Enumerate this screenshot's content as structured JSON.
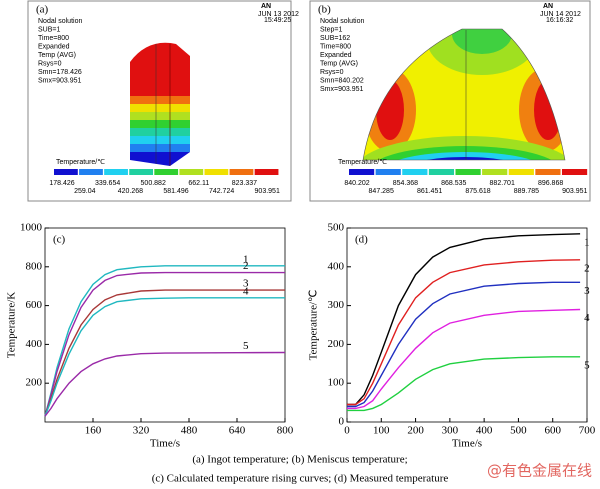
{
  "panels": [
    {
      "label": "(a)",
      "logo": "AN",
      "date": "JUN 13 2012",
      "time": "15:49:25",
      "info": [
        "Nodal solution",
        "SUB=1",
        "Time=800",
        "Expanded",
        "Temp (AVG)",
        "Rsys=0",
        "Smn=178.426",
        "Smx=903.951"
      ],
      "legend_title": "Temperature/℃",
      "legend_top": [
        178.426,
        339.654,
        500.882,
        662.11,
        823.337
      ],
      "legend_bottom": [
        259.04,
        420.268,
        581.496,
        742.724,
        903.951
      ]
    },
    {
      "label": "(b)",
      "logo": "AN",
      "date": "JUN 14 2012",
      "time": "16:16:32",
      "info": [
        "Nodal solution",
        "Step=1",
        "SUB=162",
        "Time=800",
        "Expanded",
        "Temp (AVG)",
        "Rsys=0",
        "Smn=840.202",
        "Smx=903.951"
      ],
      "legend_title": "Temperature/℃",
      "legend_top": [
        840.202,
        854.368,
        868.535,
        882.701,
        896.868
      ],
      "legend_bottom": [
        847.285,
        861.451,
        875.618,
        889.785,
        903.951
      ]
    }
  ],
  "chart_data": [
    {
      "type": "line",
      "panel_label": "(c)",
      "x_label": "Time/s",
      "y_label": "Temperature/K",
      "x": [
        0,
        20,
        40,
        80,
        120,
        160,
        200,
        240,
        320,
        400,
        480,
        640,
        800
      ],
      "xlim": [
        0,
        800
      ],
      "xticks": [
        160,
        320,
        480,
        640,
        800
      ],
      "ylim": [
        0,
        1000
      ],
      "yticks": [
        200,
        400,
        600,
        800,
        1000
      ],
      "series": [
        {
          "name": "1",
          "color": "#20b8c0",
          "values": [
            30,
            150,
            280,
            480,
            620,
            710,
            760,
            785,
            800,
            805,
            805,
            805,
            805
          ]
        },
        {
          "name": "2",
          "color": "#9a2aa8",
          "values": [
            30,
            140,
            260,
            450,
            590,
            680,
            730,
            755,
            768,
            770,
            770,
            770,
            770
          ]
        },
        {
          "name": "3",
          "color": "#a83838",
          "values": [
            30,
            120,
            220,
            380,
            500,
            580,
            630,
            655,
            675,
            680,
            680,
            680,
            680
          ]
        },
        {
          "name": "4",
          "color": "#20b8c0",
          "values": [
            30,
            110,
            200,
            350,
            470,
            550,
            595,
            620,
            635,
            638,
            640,
            640,
            640
          ]
        },
        {
          "name": "5",
          "color": "#9a2aa8",
          "values": [
            30,
            70,
            120,
            200,
            260,
            300,
            325,
            340,
            352,
            355,
            356,
            357,
            358
          ]
        }
      ]
    },
    {
      "type": "line",
      "panel_label": "(d)",
      "x_label": "Time/s",
      "y_label": "Temperature/℃",
      "x": [
        0,
        25,
        50,
        75,
        100,
        150,
        200,
        250,
        300,
        400,
        500,
        600,
        680
      ],
      "xlim": [
        0,
        700
      ],
      "xticks": [
        0,
        100,
        200,
        300,
        400,
        500,
        600,
        700
      ],
      "ylim": [
        0,
        500
      ],
      "yticks": [
        0,
        100,
        200,
        300,
        400,
        500
      ],
      "series": [
        {
          "name": "1",
          "color": "#000000",
          "values": [
            45,
            45,
            70,
            120,
            180,
            300,
            380,
            425,
            450,
            472,
            480,
            483,
            485
          ]
        },
        {
          "name": "2",
          "color": "#e02020",
          "values": [
            45,
            45,
            60,
            100,
            150,
            250,
            320,
            360,
            385,
            405,
            413,
            417,
            418
          ]
        },
        {
          "name": "3",
          "color": "#2030c0",
          "values": [
            40,
            40,
            50,
            80,
            120,
            200,
            265,
            305,
            330,
            350,
            357,
            360,
            360
          ]
        },
        {
          "name": "4",
          "color": "#e020e0",
          "values": [
            35,
            35,
            40,
            55,
            85,
            140,
            190,
            230,
            255,
            275,
            285,
            288,
            290
          ]
        },
        {
          "name": "5",
          "color": "#20d040",
          "values": [
            30,
            30,
            30,
            35,
            45,
            75,
            110,
            135,
            150,
            162,
            166,
            168,
            168
          ]
        }
      ]
    }
  ],
  "caption": [
    "(a)  Ingot temperature;  (b)  Meniscus temperature;",
    "(c)  Calculated temperature rising curves;  (d)  Measured temperature"
  ],
  "watermark": "@有色金属在线"
}
